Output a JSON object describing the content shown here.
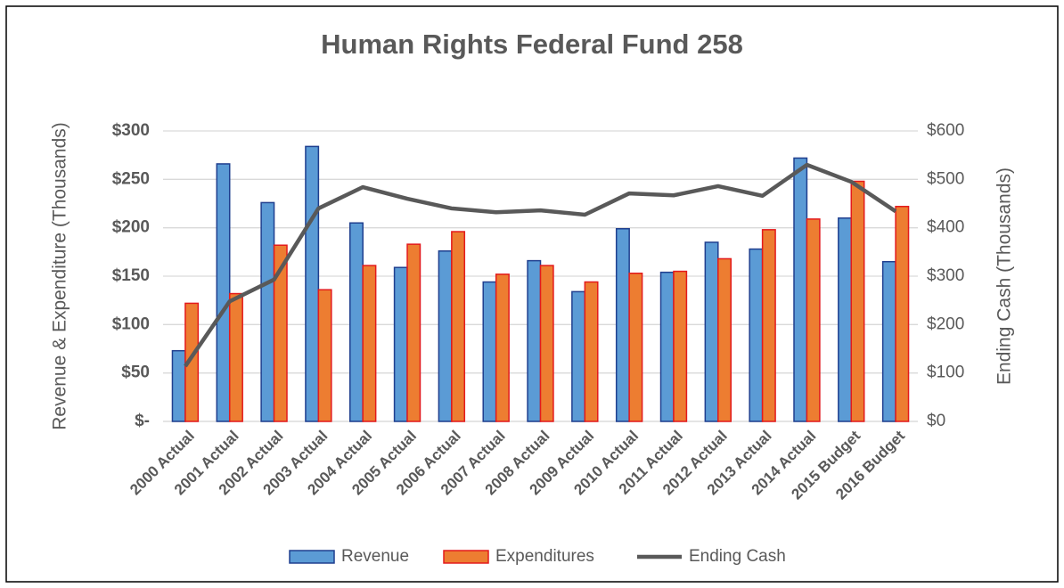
{
  "chart_data": {
    "type": "bar_line_combo",
    "title": "Human Rights Federal Fund 258",
    "ylabel": "Revenue & Expenditure (Thousands)",
    "y2label": "Ending Cash (Thousands)",
    "categories": [
      "2000 Actual",
      "2001 Actual",
      "2002 Actual",
      "2003 Actual",
      "2004 Actual",
      "2005 Actual",
      "2006 Actual",
      "2007 Actual",
      "2008 Actual",
      "2009 Actual",
      "2010 Actual",
      "2011 Actual",
      "2012 Actual",
      "2013 Actual",
      "2014 Actual",
      "2015 Budget",
      "2016 Budget"
    ],
    "series": [
      {
        "name": "Revenue",
        "type": "bar",
        "color": "#5b9bd5",
        "edgecolor": "#1f3f8f",
        "values": [
          73,
          266,
          226,
          284,
          205,
          159,
          176,
          144,
          166,
          134,
          199,
          154,
          185,
          178,
          272,
          210,
          165
        ]
      },
      {
        "name": "Expenditures",
        "type": "bar",
        "color": "#ed7d31",
        "edgecolor": "#e31a1c",
        "values": [
          122,
          132,
          182,
          136,
          161,
          183,
          196,
          152,
          161,
          144,
          153,
          155,
          168,
          198,
          209,
          248,
          222
        ]
      },
      {
        "name": "Ending Cash",
        "type": "line",
        "axis": "y2",
        "color": "#595959",
        "values": [
          114,
          248,
          293,
          440,
          484,
          460,
          440,
          432,
          436,
          427,
          471,
          467,
          486,
          466,
          530,
          495,
          434
        ]
      }
    ],
    "ylim": [
      0,
      300
    ],
    "yticks": [
      {
        "value": 0,
        "label": "$-"
      },
      {
        "value": 50,
        "label": "$50"
      },
      {
        "value": 100,
        "label": "$100"
      },
      {
        "value": 150,
        "label": "$150"
      },
      {
        "value": 200,
        "label": "$200"
      },
      {
        "value": 250,
        "label": "$250"
      },
      {
        "value": 300,
        "label": "$300"
      }
    ],
    "y2lim": [
      0,
      600
    ],
    "y2ticks": [
      {
        "value": 0,
        "label": "$0"
      },
      {
        "value": 100,
        "label": "$100"
      },
      {
        "value": 200,
        "label": "$200"
      },
      {
        "value": 300,
        "label": "$300"
      },
      {
        "value": 400,
        "label": "$400"
      },
      {
        "value": 500,
        "label": "$500"
      },
      {
        "value": 600,
        "label": "$600"
      }
    ],
    "grid": true,
    "legend": "bottom"
  }
}
